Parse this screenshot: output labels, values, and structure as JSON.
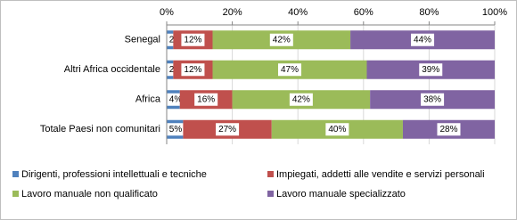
{
  "chart_data": {
    "type": "stacked-bar-100",
    "categories": [
      "Senegal",
      "Altri Africa occidentale",
      "Africa",
      "Totale Paesi non comunitari"
    ],
    "series": [
      {
        "name": "Dirigenti, professioni intellettuali e tecniche",
        "color": "#4f81bd",
        "values": [
          2,
          2,
          4,
          5
        ],
        "value_labels": [
          "2%",
          "2%",
          "4%",
          "5%"
        ]
      },
      {
        "name": "Impiegati, addetti alle vendite e servizi personali",
        "color": "#c0504d",
        "values": [
          12,
          12,
          16,
          27
        ],
        "value_labels": [
          "12%",
          "12%",
          "16%",
          "27%"
        ]
      },
      {
        "name": "Lavoro manuale non qualificato",
        "color": "#9bbb59",
        "values": [
          42,
          47,
          42,
          40
        ],
        "value_labels": [
          "42%",
          "47%",
          "42%",
          "40%"
        ]
      },
      {
        "name": "Lavoro manuale specializzato",
        "color": "#8064a2",
        "values": [
          44,
          39,
          38,
          28
        ],
        "value_labels": [
          "44%",
          "39%",
          "38%",
          "28%"
        ]
      }
    ],
    "xlim": [
      0,
      100
    ],
    "xticks": [
      {
        "value": 0,
        "label": "0%"
      },
      {
        "value": 20,
        "label": "20%"
      },
      {
        "value": 40,
        "label": "40%"
      },
      {
        "value": 60,
        "label": "60%"
      },
      {
        "value": 80,
        "label": "80%"
      },
      {
        "value": 100,
        "label": "100%"
      }
    ],
    "grid": true
  }
}
